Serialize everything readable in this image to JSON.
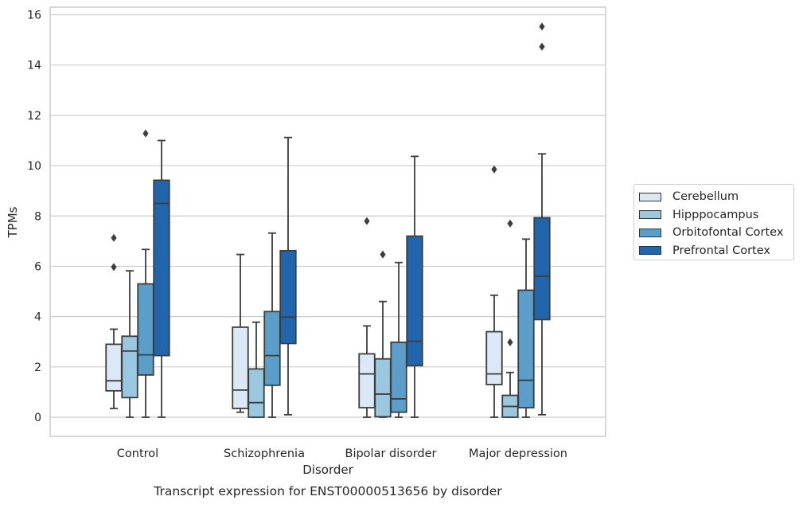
{
  "chart_data": {
    "type": "box",
    "title": "Transcript expression for ENST00000513656 by disorder",
    "xlabel": "Disorder",
    "ylabel": "TPMs",
    "ylim": [
      -0.75,
      16.35
    ],
    "yticks": [
      0,
      2,
      4,
      6,
      8,
      10,
      12,
      14,
      16
    ],
    "grid": "horizontal",
    "legend_position": "right",
    "categories": [
      "Control",
      "Schizophrenia",
      "Bipolar disorder",
      "Major depression"
    ],
    "series": [
      {
        "name": "Cerebellum",
        "color": "#dbe9f6",
        "boxes": [
          {
            "whislo": 0.35,
            "q1": 1.05,
            "med": 1.45,
            "q3": 2.9,
            "whishi": 3.5,
            "fliers": [
              5.97,
              7.13
            ]
          },
          {
            "whislo": 0.2,
            "q1": 0.35,
            "med": 1.08,
            "q3": 3.58,
            "whishi": 6.47,
            "fliers": []
          },
          {
            "whislo": 0.0,
            "q1": 0.38,
            "med": 1.72,
            "q3": 2.52,
            "whishi": 3.63,
            "fliers": [
              7.8
            ]
          },
          {
            "whislo": 0.0,
            "q1": 1.3,
            "med": 1.72,
            "q3": 3.4,
            "whishi": 4.85,
            "fliers": [
              9.85
            ]
          }
        ]
      },
      {
        "name": "Hipppocampus",
        "color": "#9ac8e0",
        "boxes": [
          {
            "whislo": 0.0,
            "q1": 0.78,
            "med": 2.63,
            "q3": 3.22,
            "whishi": 5.82,
            "fliers": []
          },
          {
            "whislo": 0.0,
            "q1": 0.0,
            "med": 0.58,
            "q3": 1.92,
            "whishi": 3.78,
            "fliers": []
          },
          {
            "whislo": 0.0,
            "q1": 0.02,
            "med": 0.92,
            "q3": 2.32,
            "whishi": 4.6,
            "fliers": [
              6.47
            ]
          },
          {
            "whislo": 0.0,
            "q1": 0.0,
            "med": 0.43,
            "q3": 0.87,
            "whishi": 1.78,
            "fliers": [
              2.98,
              7.7
            ]
          }
        ]
      },
      {
        "name": "Orbitofontal Cortex",
        "color": "#5a9ec9",
        "boxes": [
          {
            "whislo": 0.0,
            "q1": 1.68,
            "med": 2.48,
            "q3": 5.3,
            "whishi": 6.67,
            "fliers": [
              11.28
            ]
          },
          {
            "whislo": 0.0,
            "q1": 1.27,
            "med": 2.45,
            "q3": 4.2,
            "whishi": 7.32,
            "fliers": []
          },
          {
            "whislo": 0.0,
            "q1": 0.2,
            "med": 0.73,
            "q3": 2.98,
            "whishi": 6.15,
            "fliers": []
          },
          {
            "whislo": 0.0,
            "q1": 0.38,
            "med": 1.47,
            "q3": 5.05,
            "whishi": 7.08,
            "fliers": []
          }
        ]
      },
      {
        "name": "Prefrontal Cortex",
        "color": "#2166ac",
        "boxes": [
          {
            "whislo": 0.0,
            "q1": 2.45,
            "med": 8.5,
            "q3": 9.42,
            "whishi": 11.0,
            "fliers": []
          },
          {
            "whislo": 0.1,
            "q1": 2.93,
            "med": 3.98,
            "q3": 6.62,
            "whishi": 11.12,
            "fliers": []
          },
          {
            "whislo": 0.0,
            "q1": 2.05,
            "med": 3.02,
            "q3": 7.2,
            "whishi": 10.37,
            "fliers": []
          },
          {
            "whislo": 0.1,
            "q1": 3.88,
            "med": 5.6,
            "q3": 7.93,
            "whishi": 10.47,
            "fliers": [
              14.73,
              15.53
            ]
          }
        ]
      }
    ]
  }
}
